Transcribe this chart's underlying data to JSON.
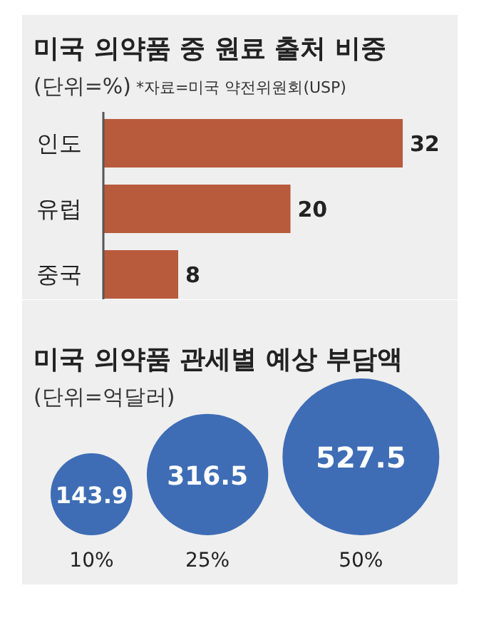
{
  "chart_data": [
    {
      "type": "bar",
      "orientation": "horizontal",
      "title": "미국 의약품 중 원료 출처 비중",
      "subtitle": "(단위=%)",
      "annotations": [
        "*자료=미국 약전위원회(USP)"
      ],
      "categories": [
        "인도",
        "유럽",
        "중국"
      ],
      "values": [
        32,
        20,
        8
      ],
      "color": "#b85a3c",
      "data_labels": true
    },
    {
      "type": "other",
      "title": "미국 의약품 관세별 예상 부담액",
      "subtitle": "(단위=억달러)",
      "categories": [
        "10%",
        "25%",
        "50%"
      ],
      "values": [
        143.9,
        316.5,
        527.5
      ],
      "color": "#3e6db5",
      "data_labels": true
    }
  ]
}
